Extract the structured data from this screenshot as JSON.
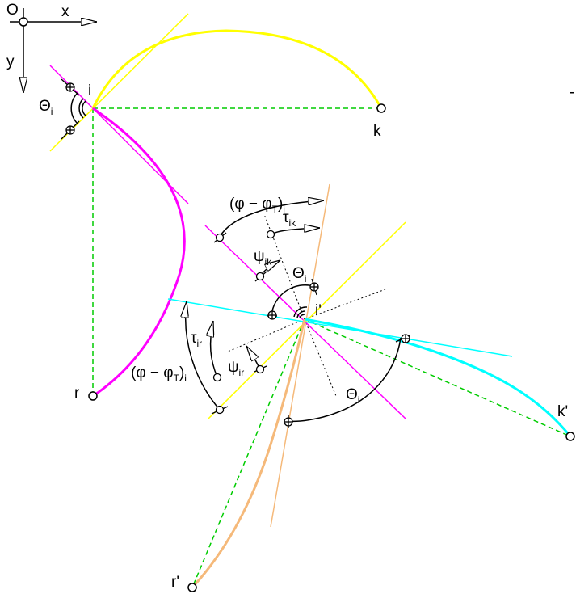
{
  "axes": {
    "origin": "O",
    "x": "x",
    "y": "y"
  },
  "points": {
    "i": "i",
    "k": "k",
    "r": "r",
    "i_prime": "i'",
    "k_prime": "k'",
    "r_prime": "r'"
  },
  "angles": {
    "theta": "Θ",
    "theta_sub": "i",
    "phi_diff": "(φ − φ",
    "phi_T": "T",
    "phi_close": ")",
    "phi_sub": "i",
    "tau": "τ",
    "tau_ik_sub": "ik",
    "tau_ir_sub": "ir",
    "psi": "ψ",
    "psi_ik_sub": "ik",
    "psi_ir_sub": "ir"
  },
  "stray_mark": "-",
  "colors": {
    "yellow": "#FFFF00",
    "magenta": "#FF00FF",
    "cyan": "#00FFFF",
    "orange": "#F5B97A",
    "dashed_green": "#00CC00",
    "black": "#000000"
  }
}
